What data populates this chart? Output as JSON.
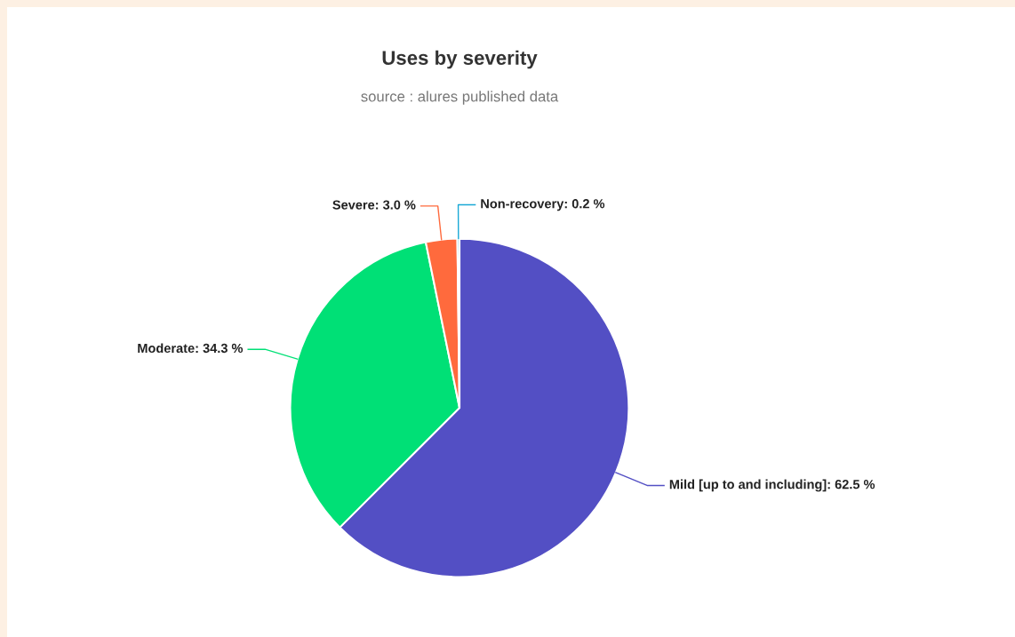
{
  "chart_data": {
    "type": "pie",
    "title": "Uses by severity",
    "subtitle": "source : alures published data",
    "categories": [
      "Mild [up to and including]",
      "Moderate",
      "Severe",
      "Non-recovery"
    ],
    "values": [
      62.5,
      34.3,
      3.0,
      0.2
    ],
    "value_labels": [
      "62.5 %",
      "34.3 %",
      "3.0 %",
      "0.2 %"
    ],
    "colors": [
      "#534fc4",
      "#00e076",
      "#ff6a3d",
      "#1aa9d6"
    ],
    "legend": false
  }
}
